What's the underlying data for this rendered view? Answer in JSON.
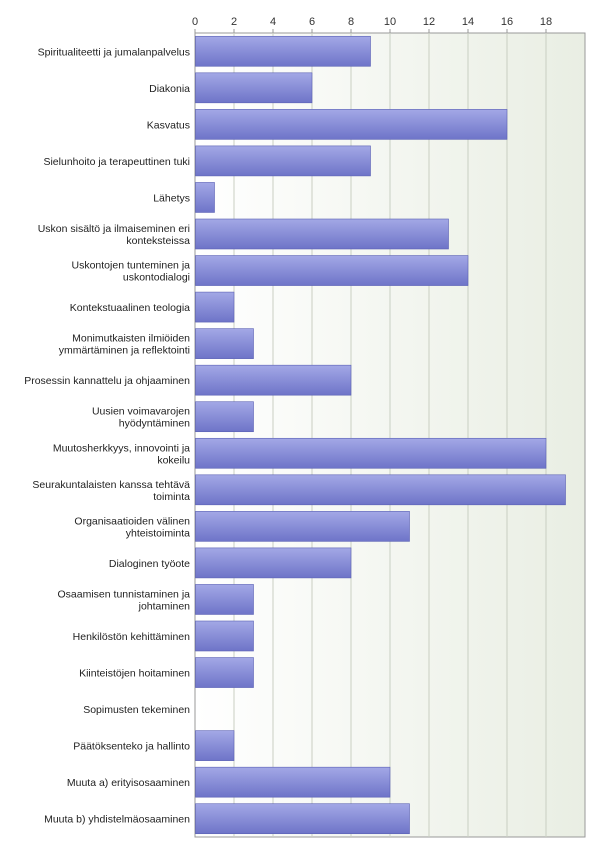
{
  "chart_data": {
    "type": "bar",
    "orientation": "horizontal",
    "title": "",
    "xlabel": "",
    "ylabel": "",
    "xlim": [
      0,
      20
    ],
    "x_ticks": [
      0,
      2,
      4,
      6,
      8,
      10,
      12,
      14,
      16,
      18
    ],
    "tick_position": "top",
    "grid": true,
    "legend": "none",
    "categories": [
      {
        "label": "Spiritualiteetti ja jumalanpalvelus",
        "lines": [
          "Spiritualiteetti ja jumalanpalvelus"
        ]
      },
      {
        "label": "Diakonia",
        "lines": [
          "Diakonia"
        ]
      },
      {
        "label": "Kasvatus",
        "lines": [
          "Kasvatus"
        ]
      },
      {
        "label": "Sielunhoito ja terapeuttinen tuki",
        "lines": [
          "Sielunhoito ja terapeuttinen tuki"
        ]
      },
      {
        "label": "Lähetys",
        "lines": [
          "Lähetys"
        ]
      },
      {
        "label": "Uskon sisältö ja ilmaiseminen eri konteksteissa",
        "lines": [
          "Uskon sisältö ja ilmaiseminen eri",
          "konteksteissa"
        ]
      },
      {
        "label": "Uskontojen tunteminen ja uskontodialogi",
        "lines": [
          "Uskontojen tunteminen ja",
          "uskontodialogi"
        ]
      },
      {
        "label": "Kontekstuaalinen teologia",
        "lines": [
          "Kontekstuaalinen teologia"
        ]
      },
      {
        "label": "Monimutkaisten ilmiöiden ymmärtäminen ja reflektointi",
        "lines": [
          "Monimutkaisten ilmiöiden",
          "ymmärtäminen ja reflektointi"
        ]
      },
      {
        "label": "Prosessin kannattelu ja ohjaaminen",
        "lines": [
          "Prosessin kannattelu ja ohjaaminen"
        ]
      },
      {
        "label": "Uusien voimavarojen hyödyntäminen",
        "lines": [
          "Uusien voimavarojen",
          "hyödyntäminen"
        ]
      },
      {
        "label": "Muutosherkkyys, innovointi ja kokeilu",
        "lines": [
          "Muutosherkkyys, innovointi ja",
          "kokeilu"
        ]
      },
      {
        "label": "Seurakuntalaisten kanssa tehtävä toiminta",
        "lines": [
          "Seurakuntalaisten kanssa tehtävä",
          "toiminta"
        ]
      },
      {
        "label": "Organisaatioiden välinen yhteistoiminta",
        "lines": [
          "Organisaatioiden välinen",
          "yhteistoiminta"
        ]
      },
      {
        "label": "Dialoginen työote",
        "lines": [
          "Dialoginen työote"
        ]
      },
      {
        "label": "Osaamisen tunnistaminen ja johtaminen",
        "lines": [
          "Osaamisen tunnistaminen ja",
          "johtaminen"
        ]
      },
      {
        "label": "Henkilöstön kehittäminen",
        "lines": [
          "Henkilöstön kehittäminen"
        ]
      },
      {
        "label": "Kiinteistöjen hoitaminen",
        "lines": [
          "Kiinteistöjen hoitaminen"
        ]
      },
      {
        "label": "Sopimusten tekeminen",
        "lines": [
          "Sopimusten tekeminen"
        ]
      },
      {
        "label": "Päätöksenteko ja hallinto",
        "lines": [
          "Päätöksenteko ja hallinto"
        ]
      },
      {
        "label": "Muuta a) erityisosaaminen",
        "lines": [
          "Muuta a) erityisosaaminen"
        ]
      },
      {
        "label": "Muuta b) yhdistelmäosaaminen",
        "lines": [
          "Muuta b) yhdistelmäosaaminen"
        ]
      }
    ],
    "values": [
      9,
      6,
      16,
      9,
      1,
      13,
      14,
      2,
      3,
      8,
      3,
      18,
      19,
      11,
      8,
      3,
      3,
      3,
      0,
      2,
      10,
      11
    ],
    "colors": {
      "bar_top": "#a3a8e6",
      "bar_bottom": "#6e74c8",
      "bar_stroke": "#5a60b4",
      "plot_bg_left": "#ffffff",
      "plot_bg_right": "#e9eee3",
      "grid": "#c9cfc2",
      "axis": "#999999"
    }
  }
}
